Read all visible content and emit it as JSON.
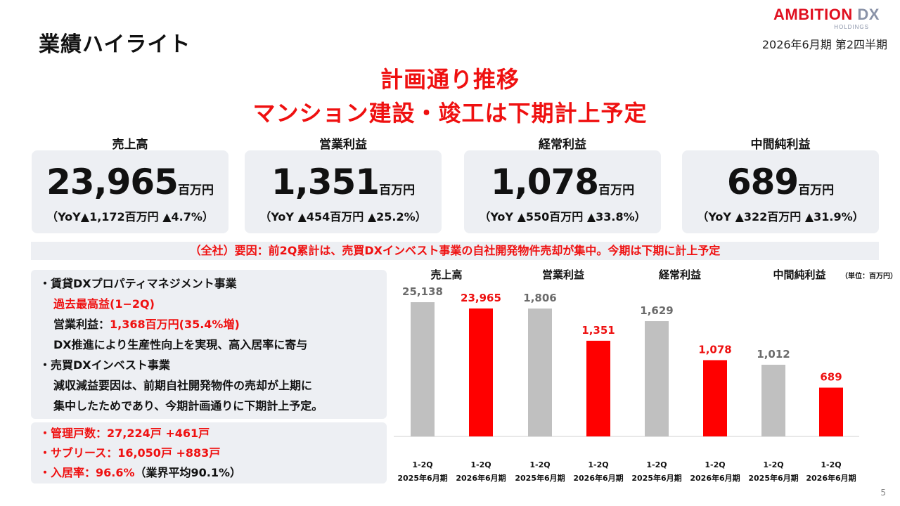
{
  "header": {
    "title": "業績ハイライト",
    "logo_main": "AMBITION",
    "logo_dx": "DX",
    "logo_sub": "HOLDINGS",
    "period": "2026年6月期 第2四半期"
  },
  "headline": {
    "line1": "計画通り推移",
    "line2": "マンション建設・竣工は下期計上予定"
  },
  "kpis": [
    {
      "label": "売上高",
      "value": "23,965",
      "unit": "百万円",
      "yoy": "（YoY▲1,172百万円 ▲4.7%）"
    },
    {
      "label": "営業利益",
      "value": "1,351",
      "unit": "百万円",
      "yoy": "（YoY ▲454百万円 ▲25.2%）"
    },
    {
      "label": "経常利益",
      "value": "1,078",
      "unit": "百万円",
      "yoy": "（YoY ▲550百万円 ▲33.8%）"
    },
    {
      "label": "中間純利益",
      "value": "689",
      "unit": "百万円",
      "yoy": "（YoY ▲322百万円 ▲31.9%）"
    }
  ],
  "factor_text": "（全社）要因：前2Q累計は、売買DXインベスト事業の自社開発物件売却が集中。今期は下期に計上予定",
  "segment_notes": {
    "l1": "・賃貸DXプロパティマネジメント事業",
    "l2": "過去最高益(1−2Q)",
    "l3_prefix": "営業利益：",
    "l3_value": "1,368百万円(35.4%増)",
    "l4": "DX推進により生産性向上を実現、高入居率に寄与",
    "l5": "・売買DXインベスト事業",
    "l6": "減収減益要因は、前期自社開発物件の売却が上期に",
    "l7": "集中したためであり、今期計画通りに下期計上予定。"
  },
  "metrics": {
    "m1": "・管理戸数：27,224戸 +461戸",
    "m2": "・サブリース：16,050戸 +883戸",
    "m3_prefix": "・入居率：96.6%",
    "m3_suffix": "（業界平均90.1%）"
  },
  "chart_data": {
    "type": "bar",
    "unit_label": "（単位：百万円）",
    "groups": [
      "売上高",
      "営業利益",
      "経常利益",
      "中間純利益"
    ],
    "series": [
      {
        "name": "1-2Q 2025年6月期",
        "color": "#c0c0c0",
        "values": [
          25138,
          1806,
          1629,
          1012
        ]
      },
      {
        "name": "1-2Q 2026年6月期",
        "color": "#ff0000",
        "values": [
          23965,
          1351,
          1078,
          689
        ]
      }
    ],
    "tick_labels": [
      [
        "1-2Q",
        "2025年6月期"
      ],
      [
        "1-2Q",
        "2026年6月期"
      ],
      [
        "1-2Q",
        "2025年6月期"
      ],
      [
        "1-2Q",
        "2026年6月期"
      ],
      [
        "1-2Q",
        "2025年6月期"
      ],
      [
        "1-2Q",
        "2026年6月期"
      ],
      [
        "1-2Q",
        "2025年6月期"
      ],
      [
        "1-2Q",
        "2026年6月期"
      ]
    ],
    "value_labels": [
      [
        "25,138",
        "23,965"
      ],
      [
        "1,806",
        "1,351"
      ],
      [
        "1,629",
        "1,078"
      ],
      [
        "1,012",
        "689"
      ]
    ]
  },
  "page_number": "5"
}
